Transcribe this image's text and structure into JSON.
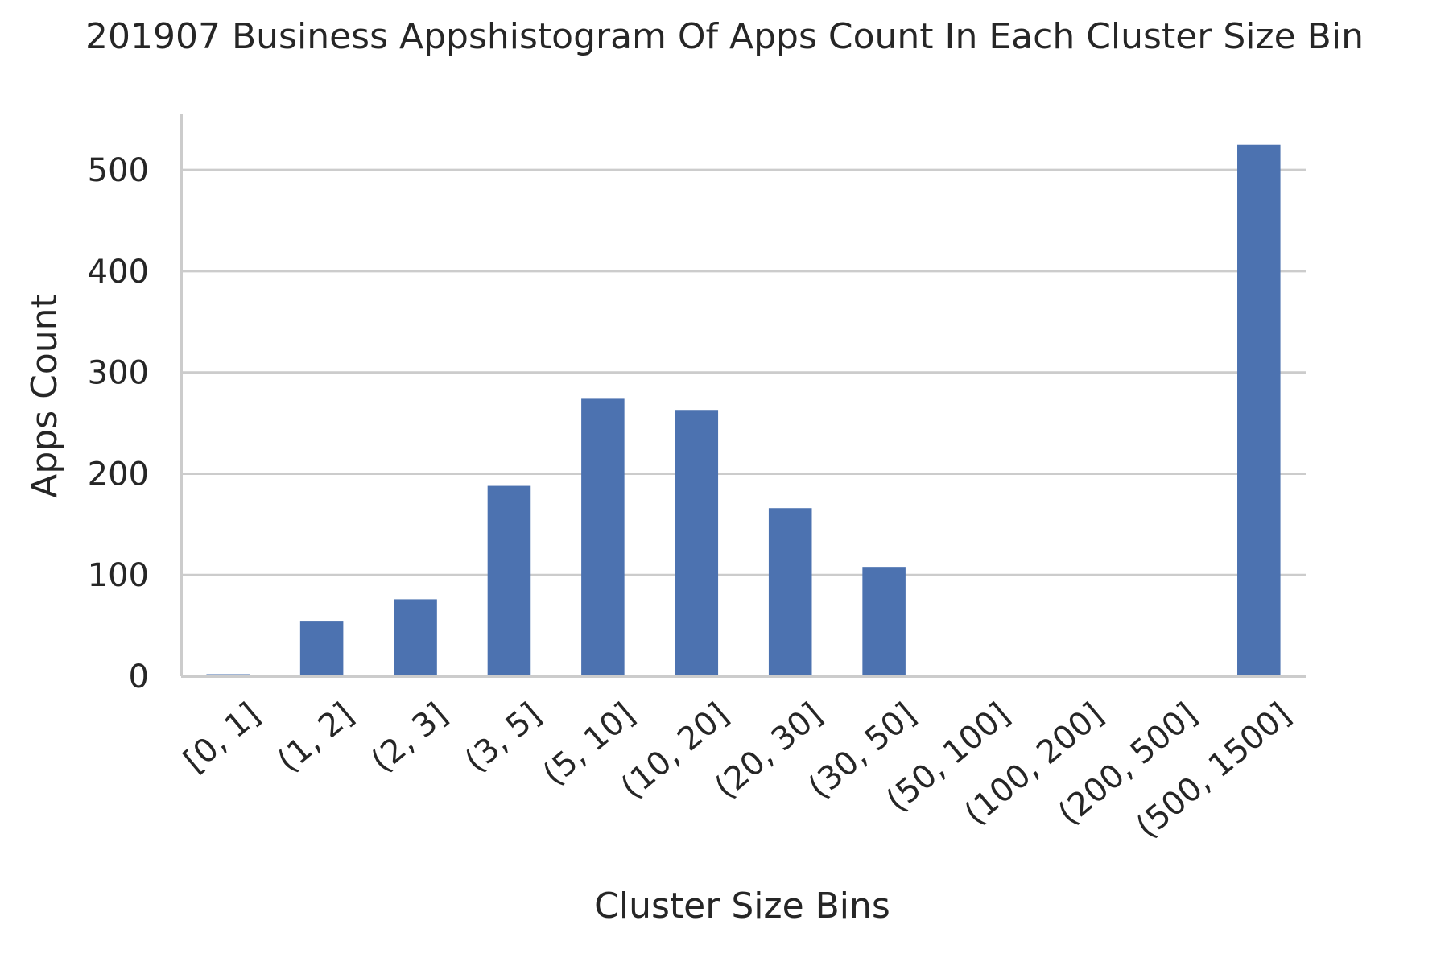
{
  "chart_data": {
    "type": "bar",
    "title": "201907 Business Appshistogram Of Apps Count In Each Cluster Size Bin",
    "xlabel": "Cluster Size Bins",
    "ylabel": "Apps Count",
    "categories": [
      "[0, 1]",
      "(1, 2]",
      "(2, 3]",
      "(3, 5]",
      "(5, 10]",
      "(10, 20]",
      "(20, 30]",
      "(30, 50]",
      "(50, 100]",
      "(100, 200]",
      "(200, 500]",
      "(500, 1500]"
    ],
    "values": [
      2,
      54,
      76,
      188,
      274,
      263,
      166,
      108,
      0,
      0,
      0,
      525
    ],
    "ylim": [
      0,
      555
    ],
    "yticks": [
      0,
      100,
      200,
      300,
      400,
      500
    ],
    "grid": true,
    "bar_color": "#4c72b0"
  }
}
